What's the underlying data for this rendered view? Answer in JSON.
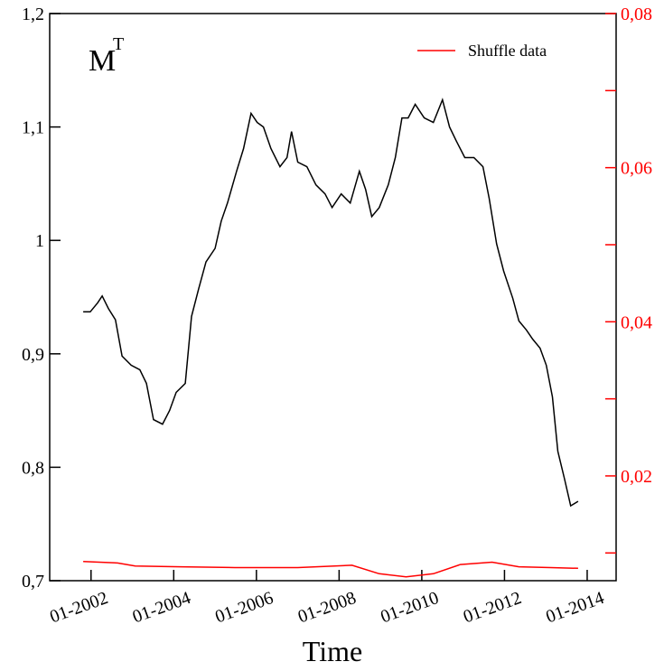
{
  "chart_data": {
    "type": "line",
    "annotation": {
      "text": "M",
      "superscript": "T"
    },
    "x_label": "Time",
    "xlim": [
      2001.0,
      2014.7
    ],
    "xticks": [
      {
        "value": 2002,
        "label": "01-2002"
      },
      {
        "value": 2004,
        "label": "01-2004"
      },
      {
        "value": 2006,
        "label": "01-2006"
      },
      {
        "value": 2008,
        "label": "01-2008"
      },
      {
        "value": 2010,
        "label": "01-2010"
      },
      {
        "value": 2012,
        "label": "01-2012"
      },
      {
        "value": 2014,
        "label": "01-2014"
      }
    ],
    "ylim": [
      0.7,
      1.2
    ],
    "yticks": [
      {
        "value": 0.7,
        "label": "0,7"
      },
      {
        "value": 0.8,
        "label": "0,8"
      },
      {
        "value": 0.9,
        "label": "0,9"
      },
      1,
      {
        "value": 1.1,
        "label": "1,1"
      },
      {
        "value": 1.2,
        "label": "1,2"
      }
    ],
    "y2lim": [
      0.0064,
      0.08
    ],
    "y2ticks": [
      {
        "value": 0.02,
        "label": "0,02"
      },
      {
        "value": 0.04,
        "label": "0,04"
      },
      {
        "value": 0.06,
        "label": "0,06"
      },
      {
        "value": 0.08,
        "label": "0,08"
      }
    ],
    "y2minorticks": [
      0.01,
      0.03,
      0.05,
      0.07
    ],
    "y2color": "#ff0000",
    "legend": "upper right",
    "series": [
      {
        "color": "#000000",
        "x": [
          2001.81,
          2001.98,
          2002.16,
          2002.27,
          2002.42,
          2002.59,
          2002.75,
          2002.97,
          2003.18,
          2003.34,
          2003.51,
          2003.73,
          2003.9,
          2004.06,
          2004.28,
          2004.43,
          2004.6,
          2004.78,
          2005.0,
          2005.15,
          2005.3,
          2005.52,
          2005.69,
          2005.87,
          2006.02,
          2006.17,
          2006.35,
          2006.57,
          2006.74,
          2006.85,
          2007.0,
          2007.22,
          2007.44,
          2007.66,
          2007.83,
          2008.05,
          2008.27,
          2008.49,
          2008.64,
          2008.79,
          2008.97,
          2009.19,
          2009.36,
          2009.52,
          2009.67,
          2009.84,
          2010.06,
          2010.28,
          2010.5,
          2010.67,
          2010.83,
          2011.04,
          2011.26,
          2011.48,
          2011.63,
          2011.81,
          2011.98,
          2012.2,
          2012.35,
          2012.53,
          2012.68,
          2012.86,
          2013.01,
          2013.16,
          2013.29,
          2013.45,
          2013.6,
          2013.78
        ],
        "values": [
          0.937,
          0.937,
          0.945,
          0.951,
          0.94,
          0.93,
          0.898,
          0.89,
          0.886,
          0.874,
          0.842,
          0.838,
          0.85,
          0.866,
          0.874,
          0.933,
          0.957,
          0.981,
          0.993,
          1.017,
          1.033,
          1.061,
          1.081,
          1.112,
          1.104,
          1.1,
          1.081,
          1.065,
          1.073,
          1.096,
          1.069,
          1.065,
          1.049,
          1.041,
          1.029,
          1.041,
          1.033,
          1.061,
          1.045,
          1.021,
          1.029,
          1.049,
          1.073,
          1.108,
          1.108,
          1.12,
          1.108,
          1.104,
          1.124,
          1.1,
          1.088,
          1.073,
          1.073,
          1.065,
          1.037,
          0.997,
          0.973,
          0.949,
          0.929,
          0.921,
          0.913,
          0.905,
          0.89,
          0.862,
          0.814,
          0.79,
          0.766,
          0.77
        ]
      },
      {
        "name": "Shuffle data",
        "color": "#ff0000",
        "axis": "y2",
        "x": [
          2001.81,
          2002.64,
          2003.07,
          2004.17,
          2005.48,
          2007.0,
          2008.31,
          2008.97,
          2009.62,
          2010.28,
          2010.93,
          2011.7,
          2012.35,
          2013.12,
          2013.78
        ],
        "values": [
          0.0089,
          0.0087,
          0.0083,
          0.0082,
          0.0081,
          0.0081,
          0.0084,
          0.0073,
          0.0069,
          0.0073,
          0.0085,
          0.0088,
          0.0082,
          0.0081,
          0.008
        ]
      }
    ]
  }
}
